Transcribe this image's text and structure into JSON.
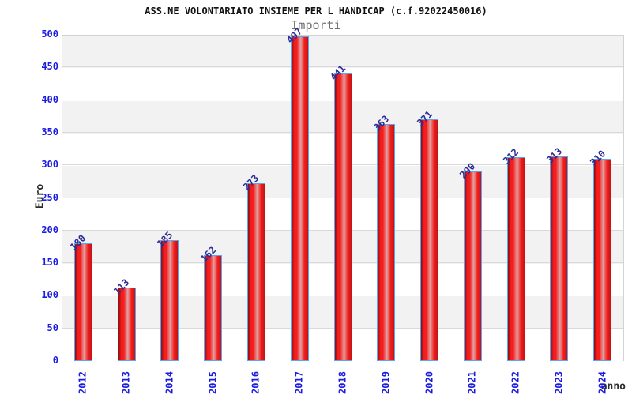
{
  "chart_data": {
    "type": "bar",
    "title": "ASS.NE VOLONTARIATO INSIEME PER L HANDICAP (c.f.92022450016)",
    "subtitle": "Importi",
    "categories": [
      "2012",
      "2013",
      "2014",
      "2015",
      "2016",
      "2017",
      "2018",
      "2019",
      "2020",
      "2021",
      "2022",
      "2023",
      "2024"
    ],
    "values": [
      180,
      113,
      185,
      162,
      273,
      497,
      441,
      363,
      371,
      290,
      312,
      313,
      310
    ],
    "xlabel": "anno",
    "ylabel": "Euro",
    "ylim": [
      0,
      500
    ],
    "ytick_step": 50,
    "grid": true,
    "alternating_bands": true,
    "legend_position": "none",
    "colors": {
      "bar_edge_dark": "#8a0f0f",
      "bar_red": "#f51d1d",
      "bar_highlight": "#dfa3a3",
      "bar_right_dark": "#c01414",
      "bar_border": "#57a7f5",
      "value_label": "#2d2d96",
      "tick_label": "#1d1de0",
      "band_gray": "#f2f2f2",
      "gridline": "#d9d9d9",
      "plot_border": "#d3d3d3",
      "title_color": "#111111",
      "subtitle_color": "#6e6e6e",
      "axis_title_color": "#2b2b2b"
    }
  }
}
